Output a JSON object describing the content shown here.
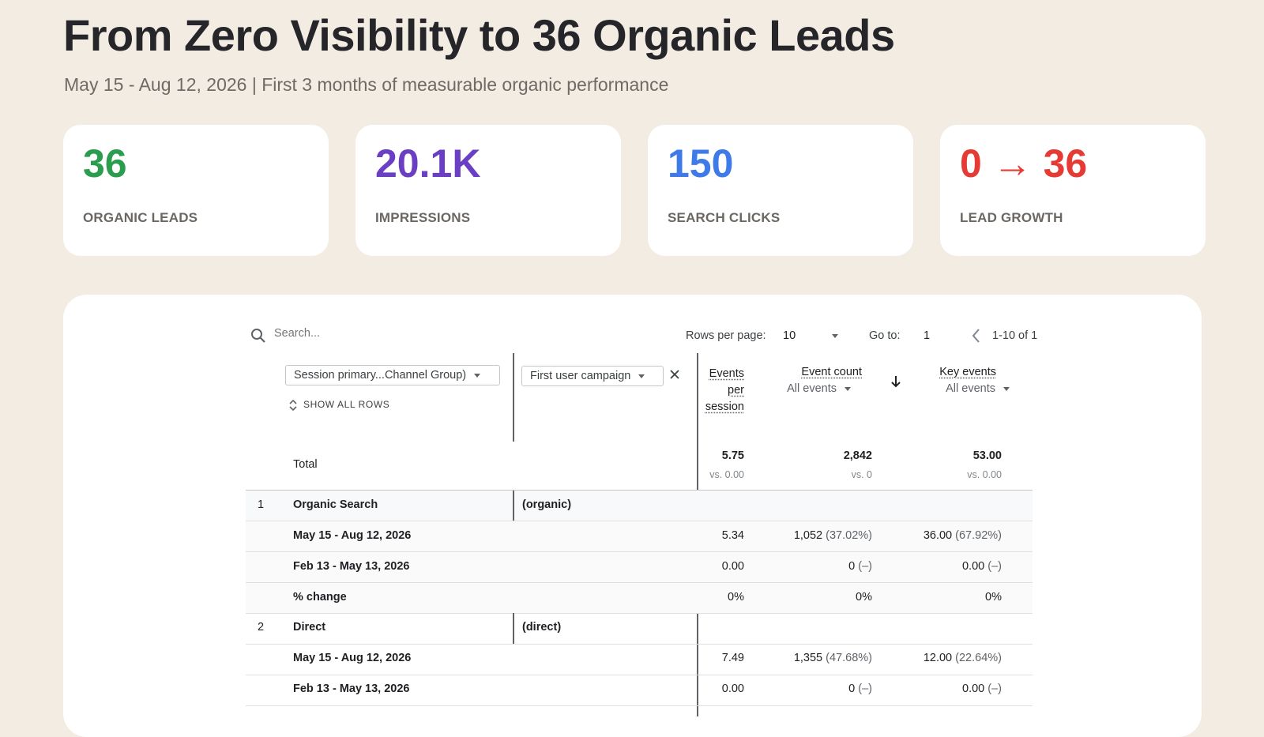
{
  "header": {
    "title": "From Zero Visibility to 36 Organic Leads",
    "subtitle": "May 15 - Aug 12, 2026 | First 3 months of measurable organic performance"
  },
  "kpis": [
    {
      "value": "36",
      "label": "ORGANIC LEADS",
      "color": "#2a9d4f"
    },
    {
      "value": "20.1K",
      "label": "IMPRESSIONS",
      "color": "#6a3fc4"
    },
    {
      "value": "150",
      "label": "SEARCH CLICKS",
      "color": "#3e7be8"
    },
    {
      "value": "0 → 36",
      "label": "LEAD GROWTH",
      "color": "#e63b35"
    }
  ],
  "toolbar": {
    "search_placeholder": "Search...",
    "rows_per_page_label": "Rows per page:",
    "rows_per_page_value": "10",
    "goto_label": "Go to:",
    "goto_value": "1",
    "range_label": "1-10 of 1"
  },
  "dimensions": {
    "primary": "Session primary...Channel Group)",
    "secondary": "First user campaign",
    "show_all_rows": "SHOW ALL ROWS"
  },
  "columns": {
    "events_per_session": [
      "Events",
      "per",
      "session"
    ],
    "event_count": "Event count",
    "event_count_sub": "All events",
    "key_events": "Key events",
    "key_events_sub": "All events"
  },
  "total": {
    "label": "Total",
    "eps": "5.75",
    "eps_vs": "vs. 0.00",
    "ec": "2,842",
    "ec_vs": "vs. 0",
    "ke": "53.00",
    "ke_vs": "vs. 0.00"
  },
  "rows": [
    {
      "index": "1",
      "channel": "Organic Search",
      "campaign": "(organic)",
      "current": {
        "label": "May 15 - Aug 12, 2026",
        "eps": "5.34",
        "ec": "1,052",
        "ec_pct": "(37.02%)",
        "ke": "36.00",
        "ke_pct": "(67.92%)"
      },
      "previous": {
        "label": "Feb 13 - May 13, 2026",
        "eps": "0.00",
        "ec": "0",
        "ec_pct": "(–)",
        "ke": "0.00",
        "ke_pct": "(–)"
      },
      "change": {
        "label": "% change",
        "eps": "0%",
        "ec": "0%",
        "ke": "0%"
      }
    },
    {
      "index": "2",
      "channel": "Direct",
      "campaign": "(direct)",
      "current": {
        "label": "May 15 - Aug 12, 2026",
        "eps": "7.49",
        "ec": "1,355",
        "ec_pct": "(47.68%)",
        "ke": "12.00",
        "ke_pct": "(22.64%)"
      },
      "previous": {
        "label": "Feb 13 - May 13, 2026",
        "eps": "0.00",
        "ec": "0",
        "ec_pct": "(–)",
        "ke": "0.00",
        "ke_pct": "(–)"
      }
    }
  ]
}
